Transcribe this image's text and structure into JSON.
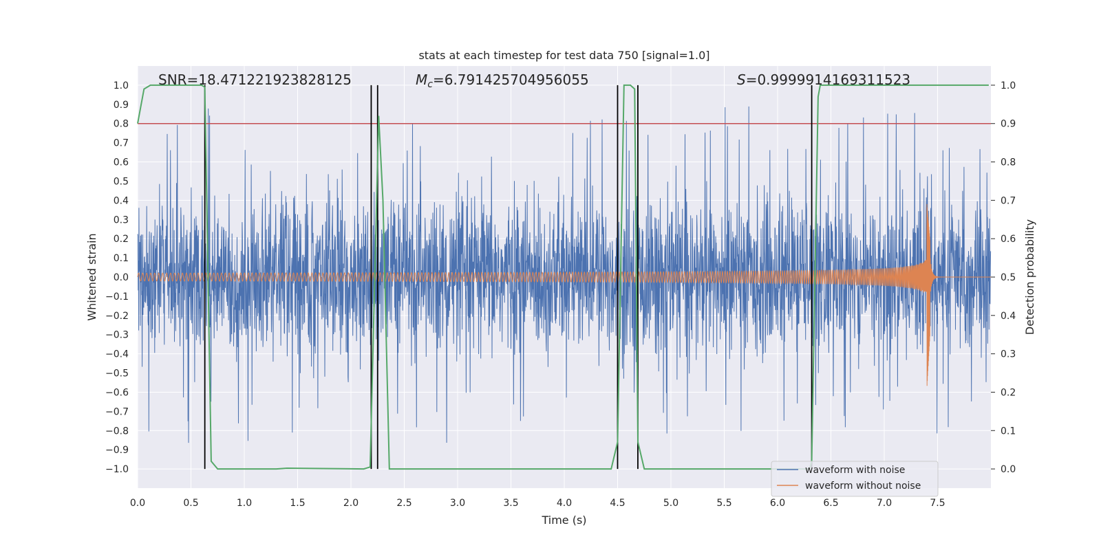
{
  "chart_data": {
    "type": "line",
    "title": "stats at each timestep for test data 750 [signal=1.0]",
    "xlabel": "Time (s)",
    "ylabel_left": "Whitened strain",
    "ylabel_right": "Detection probability",
    "xlim": [
      0.0,
      8.0
    ],
    "ylim_left": [
      -1.1,
      1.1
    ],
    "ylim_right": [
      -0.05,
      1.05
    ],
    "x_ticks": [
      "0.0",
      "0.5",
      "1.0",
      "1.5",
      "2.0",
      "2.5",
      "3.0",
      "3.5",
      "4.0",
      "4.5",
      "5.0",
      "5.5",
      "6.0",
      "6.5",
      "7.0",
      "7.5"
    ],
    "y_left_ticks": [
      "1.0",
      "0.9",
      "0.8",
      "0.7",
      "0.6",
      "0.5",
      "0.4",
      "0.3",
      "0.2",
      "0.1",
      "0.0",
      "−0.1",
      "−0.2",
      "−0.3",
      "−0.4",
      "−0.5",
      "−0.6",
      "−0.7",
      "−0.8",
      "−0.9",
      "−1.0"
    ],
    "y_right_ticks": [
      "1.0",
      "0.9",
      "0.8",
      "0.7",
      "0.6",
      "0.5",
      "0.4",
      "0.3",
      "0.2",
      "0.1",
      "0.0"
    ],
    "annotations": {
      "snr": "SNR=18.471221923828125",
      "mc_symbol": "M",
      "mc_sub": "c",
      "mc_value": "=6.791425704956055",
      "s_symbol": "S",
      "s_value": "=0.9999914169311523"
    },
    "threshold": {
      "axis": "right",
      "value": 0.9,
      "color": "#c44e52"
    },
    "event_lines": [
      0.63,
      2.19,
      2.25,
      4.5,
      4.69,
      6.32
    ],
    "series": [
      {
        "name": "waveform with noise",
        "color": "#4c72b0",
        "axis": "left",
        "description": "dense whitened noise, amplitude mostly within ±0.5 with spikes to about ±0.9",
        "typical_amplitude": 0.4,
        "peak_amplitude": 0.9,
        "duration": 8.0
      },
      {
        "name": "waveform without noise",
        "color": "#dd8452",
        "axis": "left",
        "description": "chirp waveform, amplitude ~0.02 rising to ~0.38 at merger near 7.43 s, then ringdown to 0",
        "start_amplitude": 0.02,
        "merger_time": 7.43,
        "merger_amplitude": 0.38,
        "merger_min": -0.58
      },
      {
        "name": "detection probability",
        "color": "#55a868",
        "axis": "right",
        "x": [
          0.0,
          0.06,
          0.12,
          0.18,
          0.6,
          0.63,
          0.69,
          0.75,
          1.3,
          1.4,
          2.12,
          2.18,
          2.26,
          2.3,
          2.36,
          2.42,
          4.44,
          4.5,
          4.56,
          4.62,
          4.66,
          4.69,
          4.75,
          4.81,
          4.95,
          6.3,
          6.32,
          6.38,
          6.4,
          7.98
        ],
        "y": [
          0.9,
          0.99,
          1.0,
          1.0,
          1.0,
          0.995,
          0.02,
          0.0,
          0.0,
          0.002,
          0.0,
          0.005,
          0.92,
          0.7,
          0.0,
          0.0,
          0.0,
          0.07,
          1.0,
          1.0,
          0.99,
          0.07,
          0.0,
          0.0,
          0.0,
          0.0,
          0.02,
          0.97,
          1.0,
          1.0
        ]
      }
    ],
    "legend": {
      "position": "lower-right",
      "entries": [
        {
          "label": "waveform with noise",
          "color": "#4c72b0"
        },
        {
          "label": "waveform without noise",
          "color": "#dd8452"
        }
      ]
    }
  },
  "colors": {
    "plot_background": "#eaeaf2",
    "grid": "#ffffff",
    "event_line": "#000000"
  }
}
